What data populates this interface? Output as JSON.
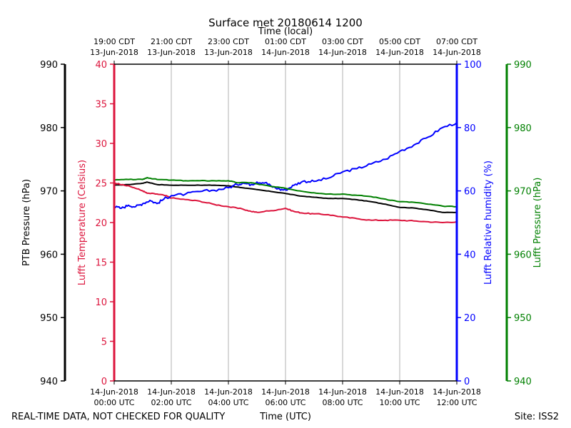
{
  "chart_data": {
    "type": "line",
    "title": "Surface met 20180614 1200",
    "top_axis_label": "Time (local)",
    "bottom_axis_label": "Time (UTC)",
    "footer_left": "REAL-TIME DATA, NOT CHECKED FOR QUALITY",
    "footer_right": "Site: ISS2",
    "x_range_hours": [
      0,
      12
    ],
    "grid_vertical_hours": [
      2,
      4,
      6,
      8,
      10
    ],
    "x_ticks_utc": [
      {
        "hour": 0,
        "line1": "14-Jun-2018",
        "line2": "00:00 UTC"
      },
      {
        "hour": 2,
        "line1": "14-Jun-2018",
        "line2": "02:00 UTC"
      },
      {
        "hour": 4,
        "line1": "14-Jun-2018",
        "line2": "04:00 UTC"
      },
      {
        "hour": 6,
        "line1": "14-Jun-2018",
        "line2": "06:00 UTC"
      },
      {
        "hour": 8,
        "line1": "14-Jun-2018",
        "line2": "08:00 UTC"
      },
      {
        "hour": 10,
        "line1": "14-Jun-2018",
        "line2": "10:00 UTC"
      },
      {
        "hour": 12,
        "line1": "14-Jun-2018",
        "line2": "12:00 UTC"
      }
    ],
    "x_ticks_local": [
      {
        "hour": 0,
        "line1": "19:00 CDT",
        "line2": "13-Jun-2018"
      },
      {
        "hour": 2,
        "line1": "21:00 CDT",
        "line2": "13-Jun-2018"
      },
      {
        "hour": 4,
        "line1": "23:00 CDT",
        "line2": "13-Jun-2018"
      },
      {
        "hour": 6,
        "line1": "01:00 CDT",
        "line2": "14-Jun-2018"
      },
      {
        "hour": 8,
        "line1": "03:00 CDT",
        "line2": "14-Jun-2018"
      },
      {
        "hour": 10,
        "line1": "05:00 CDT",
        "line2": "14-Jun-2018"
      },
      {
        "hour": 12,
        "line1": "07:00 CDT",
        "line2": "14-Jun-2018"
      }
    ],
    "axes": [
      {
        "id": "ptb",
        "label": "PTB Pressure (hPa)",
        "color": "#000000",
        "range": [
          940,
          990
        ],
        "ticks": [
          940,
          950,
          960,
          970,
          980,
          990
        ],
        "side": "left-outer"
      },
      {
        "id": "temp",
        "label": "Lufft Temperature (Celsius)",
        "color": "#dc143c",
        "range": [
          0,
          40
        ],
        "ticks": [
          0,
          5,
          10,
          15,
          20,
          25,
          30,
          35,
          40
        ],
        "side": "left-inner"
      },
      {
        "id": "rh",
        "label": "Lufft Relative humidity (%)",
        "color": "#0000ff",
        "range": [
          0,
          100
        ],
        "ticks": [
          0,
          20,
          40,
          60,
          80,
          100
        ],
        "side": "right-inner"
      },
      {
        "id": "lp",
        "label": "Lufft Pressure (hPa)",
        "color": "#008000",
        "range": [
          940,
          990
        ],
        "ticks": [
          940,
          950,
          960,
          970,
          980,
          990
        ],
        "side": "right-outer"
      }
    ],
    "series": [
      {
        "name": "PTB Pressure",
        "axis": "ptb",
        "color": "#000000",
        "points": [
          [
            0,
            970.9
          ],
          [
            0.5,
            971.0
          ],
          [
            1.0,
            971.2
          ],
          [
            1.15,
            971.4
          ],
          [
            1.5,
            971.0
          ],
          [
            2.0,
            970.9
          ],
          [
            2.5,
            970.9
          ],
          [
            3.0,
            970.9
          ],
          [
            3.5,
            970.9
          ],
          [
            4.0,
            970.8
          ],
          [
            4.5,
            970.5
          ],
          [
            5.0,
            970.2
          ],
          [
            5.5,
            969.9
          ],
          [
            6.0,
            969.6
          ],
          [
            6.5,
            969.2
          ],
          [
            7.0,
            969.0
          ],
          [
            7.5,
            968.8
          ],
          [
            8.0,
            968.8
          ],
          [
            8.5,
            968.6
          ],
          [
            9.0,
            968.3
          ],
          [
            9.5,
            967.9
          ],
          [
            10.0,
            967.4
          ],
          [
            10.5,
            967.3
          ],
          [
            11.0,
            967.0
          ],
          [
            11.5,
            966.6
          ],
          [
            12.0,
            966.6
          ]
        ]
      },
      {
        "name": "Lufft Temperature",
        "axis": "temp",
        "color": "#dc143c",
        "points": [
          [
            0,
            25.0
          ],
          [
            0.3,
            24.8
          ],
          [
            0.7,
            24.4
          ],
          [
            1.0,
            24.0
          ],
          [
            1.15,
            23.7
          ],
          [
            1.5,
            23.6
          ],
          [
            1.8,
            23.4
          ],
          [
            2.0,
            23.1
          ],
          [
            2.5,
            22.9
          ],
          [
            3.0,
            22.7
          ],
          [
            3.5,
            22.3
          ],
          [
            4.0,
            22.0
          ],
          [
            4.5,
            21.7
          ],
          [
            4.8,
            21.4
          ],
          [
            5.0,
            21.3
          ],
          [
            5.5,
            21.5
          ],
          [
            6.0,
            21.8
          ],
          [
            6.3,
            21.4
          ],
          [
            6.6,
            21.2
          ],
          [
            7.0,
            21.1
          ],
          [
            7.5,
            21.0
          ],
          [
            8.0,
            20.7
          ],
          [
            8.5,
            20.5
          ],
          [
            9.0,
            20.3
          ],
          [
            9.5,
            20.3
          ],
          [
            10.0,
            20.3
          ],
          [
            10.5,
            20.2
          ],
          [
            11.0,
            20.1
          ],
          [
            11.5,
            20.0
          ],
          [
            12.0,
            20.1
          ]
        ]
      },
      {
        "name": "Lufft Relative humidity",
        "axis": "rh",
        "color": "#0000ff",
        "points": [
          [
            0,
            55
          ],
          [
            0.25,
            54.5
          ],
          [
            0.5,
            55.5
          ],
          [
            0.75,
            55
          ],
          [
            1.0,
            56
          ],
          [
            1.25,
            57
          ],
          [
            1.5,
            56
          ],
          [
            1.75,
            57.5
          ],
          [
            2.0,
            58.5
          ],
          [
            2.5,
            59
          ],
          [
            3.0,
            59.8
          ],
          [
            3.5,
            60.2
          ],
          [
            4.0,
            61
          ],
          [
            4.3,
            62
          ],
          [
            4.5,
            62.5
          ],
          [
            4.8,
            62
          ],
          [
            5.0,
            62.8
          ],
          [
            5.3,
            62.6
          ],
          [
            5.5,
            61.5
          ],
          [
            5.8,
            60.5
          ],
          [
            6.0,
            60.3
          ],
          [
            6.3,
            61.8
          ],
          [
            6.6,
            63
          ],
          [
            7.0,
            63
          ],
          [
            7.5,
            64
          ],
          [
            8.0,
            66
          ],
          [
            8.5,
            67
          ],
          [
            9.0,
            68.5
          ],
          [
            9.5,
            70
          ],
          [
            10.0,
            72.5
          ],
          [
            10.5,
            74.5
          ],
          [
            11.0,
            77
          ],
          [
            11.5,
            80
          ],
          [
            12.0,
            81.5
          ]
        ]
      },
      {
        "name": "Lufft Pressure",
        "axis": "lp",
        "color": "#008000",
        "points": [
          [
            0,
            971.7
          ],
          [
            0.5,
            971.8
          ],
          [
            1.0,
            971.8
          ],
          [
            1.15,
            972.1
          ],
          [
            1.5,
            971.8
          ],
          [
            2.0,
            971.7
          ],
          [
            2.5,
            971.6
          ],
          [
            3.0,
            971.6
          ],
          [
            3.5,
            971.6
          ],
          [
            4.0,
            971.6
          ],
          [
            4.3,
            971.3
          ],
          [
            4.8,
            971.3
          ],
          [
            5.0,
            971.1
          ],
          [
            5.5,
            970.7
          ],
          [
            6.0,
            970.4
          ],
          [
            6.5,
            970.0
          ],
          [
            7.0,
            969.7
          ],
          [
            7.5,
            969.5
          ],
          [
            8.0,
            969.5
          ],
          [
            8.5,
            969.3
          ],
          [
            9.0,
            969.1
          ],
          [
            9.5,
            968.7
          ],
          [
            10.0,
            968.3
          ],
          [
            10.5,
            968.2
          ],
          [
            11.0,
            967.9
          ],
          [
            11.5,
            967.6
          ],
          [
            12.0,
            967.5
          ]
        ]
      }
    ]
  }
}
